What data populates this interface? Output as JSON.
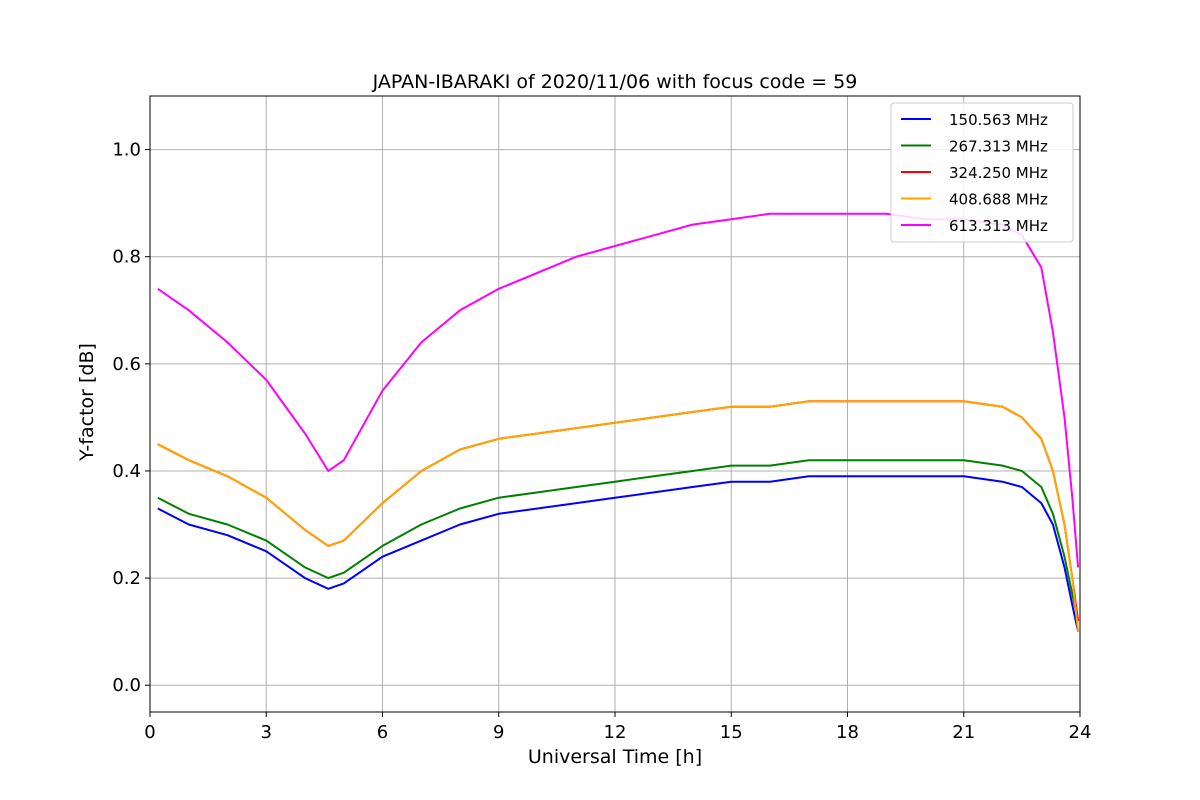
{
  "chart_data": {
    "type": "line",
    "title": "JAPAN-IBARAKI of 2020/11/06 with focus code = 59",
    "xlabel": "Universal Time [h]",
    "ylabel": "Y-factor [dB]",
    "xlim": [
      0,
      24
    ],
    "ylim": [
      -0.05,
      1.1
    ],
    "xticks": [
      0,
      3,
      6,
      9,
      12,
      15,
      18,
      21,
      24
    ],
    "xtick_labels": [
      "0",
      "3",
      "6",
      "9",
      "12",
      "15",
      "18",
      "21",
      "24"
    ],
    "yticks": [
      0.0,
      0.2,
      0.4,
      0.6,
      0.8,
      1.0
    ],
    "ytick_labels": [
      "0.0",
      "0.2",
      "0.4",
      "0.6",
      "0.8",
      "1.0"
    ],
    "grid": true,
    "legend_position": "top-right",
    "x": [
      0.2,
      1,
      2,
      3,
      4,
      4.6,
      5,
      6,
      7,
      8,
      9,
      10,
      11,
      12,
      13,
      14,
      15,
      16,
      17,
      18,
      19,
      20,
      21,
      22,
      22.5,
      23,
      23.3,
      23.6,
      23.8,
      23.95
    ],
    "series": [
      {
        "name": "150.563 MHz",
        "color": "#0000ff",
        "values": [
          0.33,
          0.3,
          0.28,
          0.25,
          0.2,
          0.18,
          0.19,
          0.24,
          0.27,
          0.3,
          0.32,
          0.33,
          0.34,
          0.35,
          0.36,
          0.37,
          0.38,
          0.38,
          0.39,
          0.39,
          0.39,
          0.39,
          0.39,
          0.38,
          0.37,
          0.34,
          0.3,
          0.22,
          0.15,
          0.1
        ]
      },
      {
        "name": "267.313 MHz",
        "color": "#008000",
        "values": [
          0.35,
          0.32,
          0.3,
          0.27,
          0.22,
          0.2,
          0.21,
          0.26,
          0.3,
          0.33,
          0.35,
          0.36,
          0.37,
          0.38,
          0.39,
          0.4,
          0.41,
          0.41,
          0.42,
          0.42,
          0.42,
          0.42,
          0.42,
          0.41,
          0.4,
          0.37,
          0.32,
          0.24,
          0.17,
          0.12
        ]
      },
      {
        "name": "324.250 MHz",
        "color": "#ff0000",
        "values": [
          0.45,
          0.42,
          0.39,
          0.35,
          0.29,
          0.26,
          0.27,
          0.34,
          0.4,
          0.44,
          0.46,
          0.47,
          0.48,
          0.49,
          0.5,
          0.51,
          0.52,
          0.52,
          0.53,
          0.53,
          0.53,
          0.53,
          0.53,
          0.52,
          0.5,
          0.46,
          0.4,
          0.3,
          0.2,
          0.12
        ]
      },
      {
        "name": "408.688 MHz",
        "color": "#ffa500",
        "values": [
          0.45,
          0.42,
          0.39,
          0.35,
          0.29,
          0.26,
          0.27,
          0.34,
          0.4,
          0.44,
          0.46,
          0.47,
          0.48,
          0.49,
          0.5,
          0.51,
          0.52,
          0.52,
          0.53,
          0.53,
          0.53,
          0.53,
          0.53,
          0.52,
          0.5,
          0.46,
          0.4,
          0.3,
          0.2,
          0.1
        ]
      },
      {
        "name": "613.313 MHz",
        "color": "#ff00ff",
        "values": [
          0.74,
          0.7,
          0.64,
          0.57,
          0.47,
          0.4,
          0.42,
          0.55,
          0.64,
          0.7,
          0.74,
          0.77,
          0.8,
          0.82,
          0.84,
          0.86,
          0.87,
          0.88,
          0.88,
          0.88,
          0.88,
          0.87,
          0.87,
          0.86,
          0.84,
          0.78,
          0.66,
          0.5,
          0.35,
          0.22
        ]
      }
    ]
  }
}
